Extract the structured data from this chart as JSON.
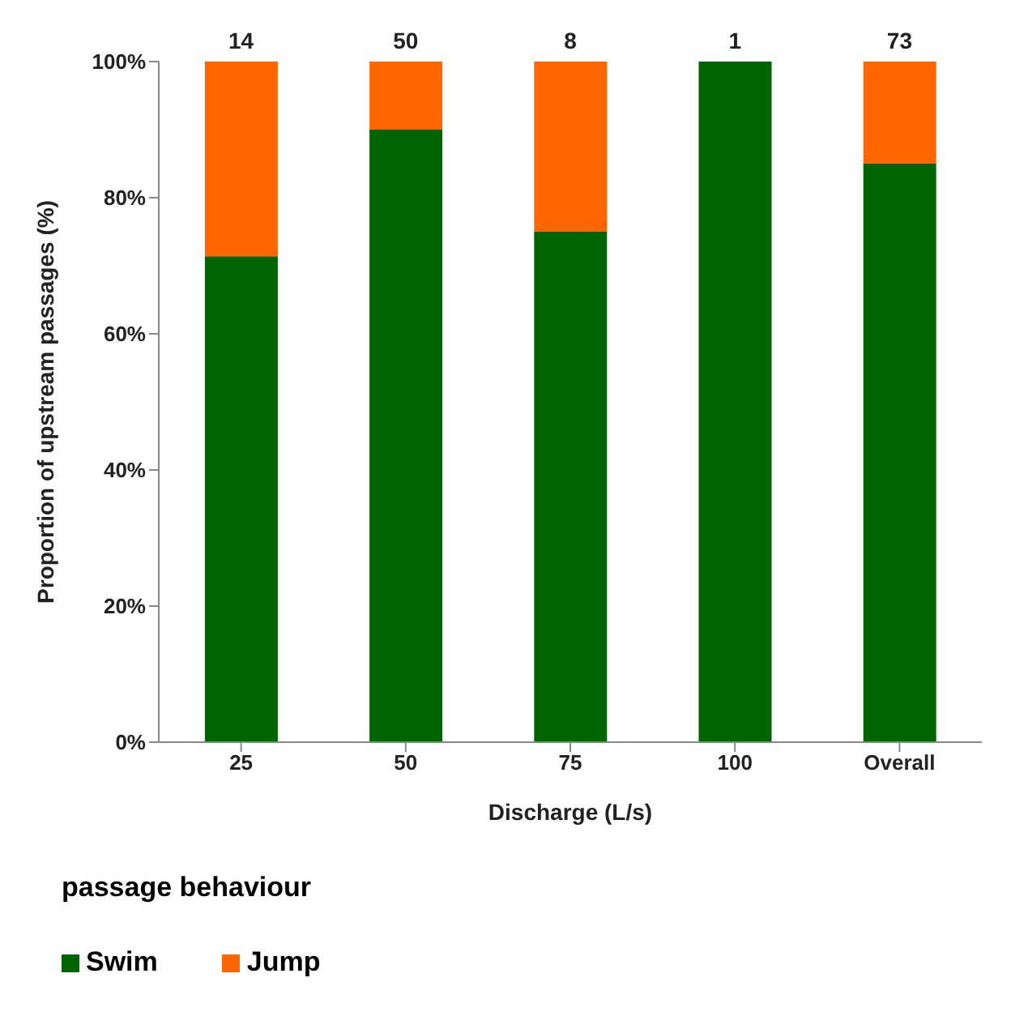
{
  "chart_data": {
    "type": "bar",
    "stacked": true,
    "xlabel": "Discharge (L/s)",
    "ylabel": "Proportion of upstream passages (%)",
    "legend_title": "passage behaviour",
    "legend": "bottom",
    "categories": [
      "25",
      "50",
      "75",
      "100",
      "Overall"
    ],
    "series": [
      {
        "name": "Swim",
        "color": "#006400",
        "values": [
          71.4,
          90,
          75,
          100,
          85
        ]
      },
      {
        "name": "Jump",
        "color": "#ff6600",
        "values": [
          28.6,
          10,
          25,
          0,
          15
        ]
      }
    ],
    "ylim": [
      0,
      100
    ],
    "yticks": [
      {
        "value": 0,
        "label": "0%"
      },
      {
        "value": 20,
        "label": "20%"
      },
      {
        "value": 40,
        "label": "40%"
      },
      {
        "value": 60,
        "label": "60%"
      },
      {
        "value": 80,
        "label": "80%"
      },
      {
        "value": 100,
        "label": "100%"
      }
    ],
    "annotations": [
      {
        "text": "14",
        "x": "25",
        "y": 100
      },
      {
        "text": "50",
        "x": "50",
        "y": 100
      },
      {
        "text": "8",
        "x": "75",
        "y": 100
      },
      {
        "text": "1",
        "x": "100",
        "y": 100
      },
      {
        "text": "73",
        "x": "Overall",
        "y": 100
      }
    ],
    "grid": false
  }
}
